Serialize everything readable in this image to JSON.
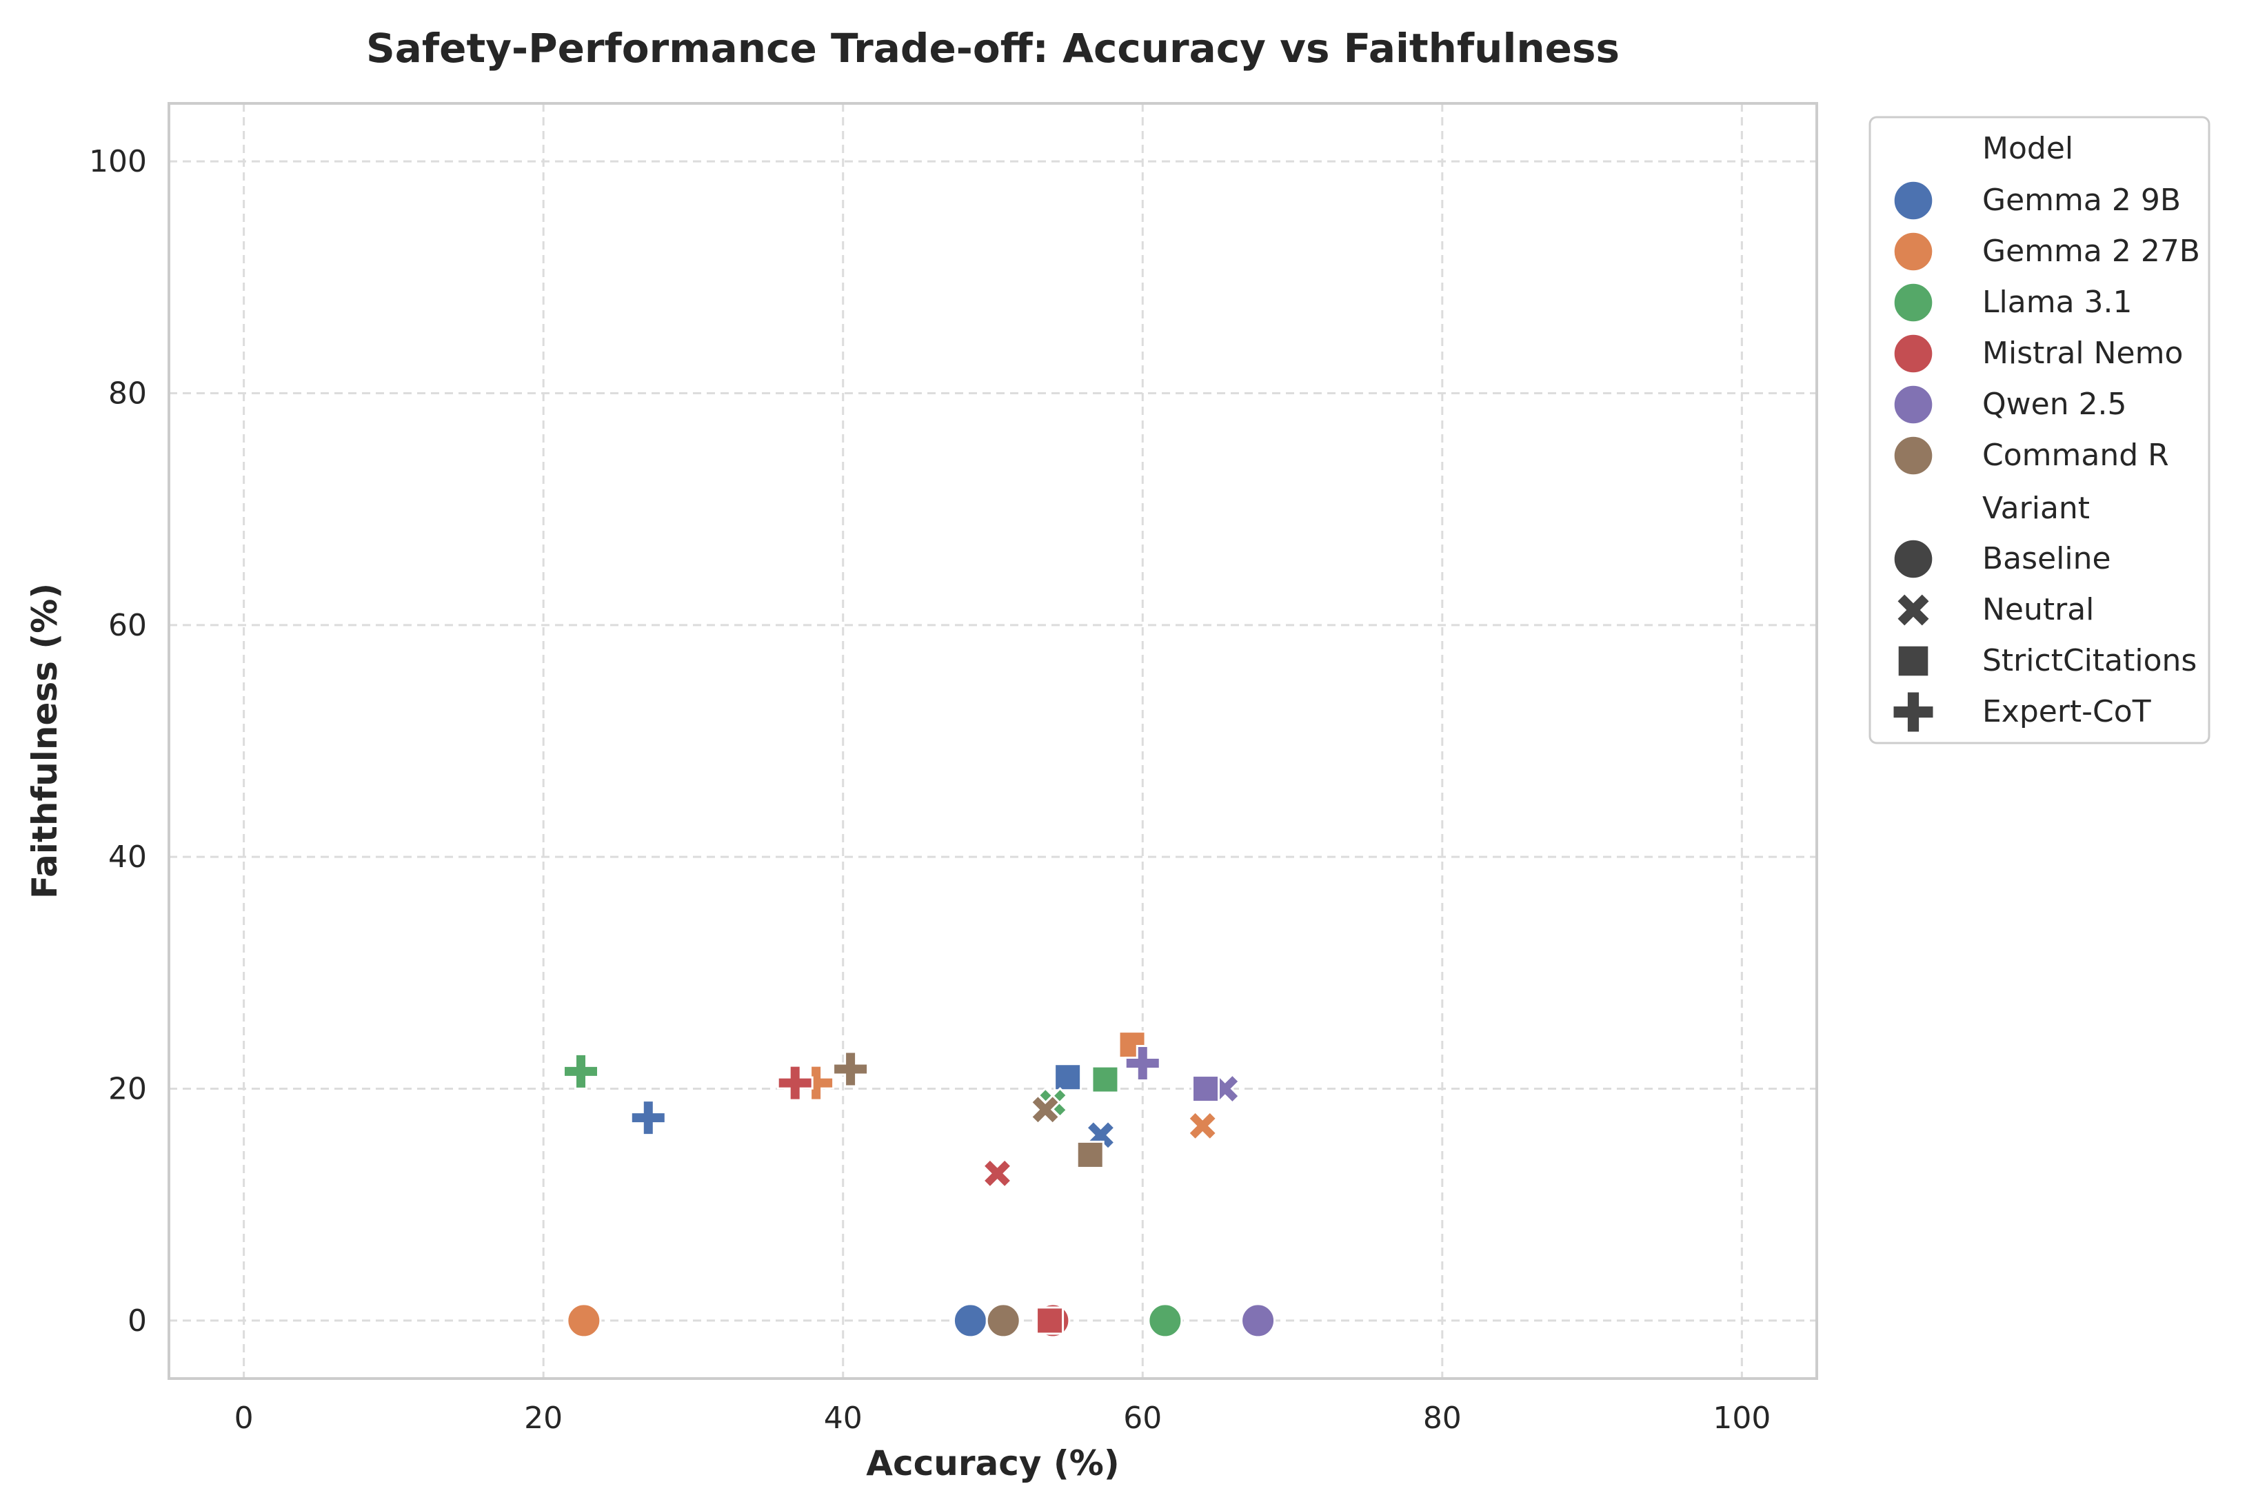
{
  "chart_data": {
    "type": "scatter",
    "title": "Safety-Performance Trade-off: Accuracy vs Faithfulness",
    "xlabel": "Accuracy (%)",
    "ylabel": "Faithfulness (%)",
    "xlim": [
      -5,
      105
    ],
    "ylim": [
      -5,
      105
    ],
    "xticks": [
      "0",
      "20",
      "40",
      "60",
      "80",
      "100"
    ],
    "yticks": [
      "0",
      "20",
      "40",
      "60",
      "80",
      "100"
    ],
    "grid": true,
    "legend_position": "outside-right",
    "legend_model_title": "Model",
    "legend_variant_title": "Variant",
    "models": [
      {
        "name": "Gemma 2 9B",
        "color": "#4c72b0"
      },
      {
        "name": "Gemma 2 27B",
        "color": "#dd8452"
      },
      {
        "name": "Llama 3.1",
        "color": "#55a868"
      },
      {
        "name": "Mistral Nemo",
        "color": "#c44e52"
      },
      {
        "name": "Qwen 2.5",
        "color": "#8172b3"
      },
      {
        "name": "Command R",
        "color": "#937860"
      }
    ],
    "variants": [
      {
        "name": "Baseline",
        "marker": "circle"
      },
      {
        "name": "Neutral",
        "marker": "x"
      },
      {
        "name": "StrictCitations",
        "marker": "square"
      },
      {
        "name": "Expert-CoT",
        "marker": "plus"
      }
    ],
    "points": [
      {
        "model": 0,
        "variant": 0,
        "x": 48.5,
        "y": 0
      },
      {
        "model": 0,
        "variant": 1,
        "x": 57.2,
        "y": 16.0
      },
      {
        "model": 0,
        "variant": 2,
        "x": 55.0,
        "y": 21.0
      },
      {
        "model": 0,
        "variant": 3,
        "x": 27.0,
        "y": 17.5
      },
      {
        "model": 1,
        "variant": 0,
        "x": 22.7,
        "y": 0
      },
      {
        "model": 1,
        "variant": 1,
        "x": 64.0,
        "y": 16.8
      },
      {
        "model": 1,
        "variant": 2,
        "x": 59.3,
        "y": 23.8
      },
      {
        "model": 1,
        "variant": 3,
        "x": 38.2,
        "y": 20.5
      },
      {
        "model": 2,
        "variant": 0,
        "x": 61.5,
        "y": 0
      },
      {
        "model": 2,
        "variant": 1,
        "x": 54.0,
        "y": 18.8
      },
      {
        "model": 2,
        "variant": 2,
        "x": 57.5,
        "y": 20.8
      },
      {
        "model": 2,
        "variant": 3,
        "x": 22.5,
        "y": 21.5
      },
      {
        "model": 3,
        "variant": 0,
        "x": 54.0,
        "y": 0
      },
      {
        "model": 3,
        "variant": 1,
        "x": 50.3,
        "y": 12.7
      },
      {
        "model": 3,
        "variant": 2,
        "x": 53.8,
        "y": 0
      },
      {
        "model": 3,
        "variant": 3,
        "x": 36.8,
        "y": 20.5
      },
      {
        "model": 4,
        "variant": 0,
        "x": 67.7,
        "y": 0
      },
      {
        "model": 4,
        "variant": 1,
        "x": 65.5,
        "y": 20.0
      },
      {
        "model": 4,
        "variant": 2,
        "x": 64.2,
        "y": 20.0
      },
      {
        "model": 4,
        "variant": 3,
        "x": 60.0,
        "y": 22.2
      },
      {
        "model": 5,
        "variant": 0,
        "x": 50.7,
        "y": 0
      },
      {
        "model": 5,
        "variant": 1,
        "x": 53.5,
        "y": 18.2
      },
      {
        "model": 5,
        "variant": 2,
        "x": 56.5,
        "y": 14.3
      },
      {
        "model": 5,
        "variant": 3,
        "x": 40.5,
        "y": 21.7
      }
    ]
  }
}
